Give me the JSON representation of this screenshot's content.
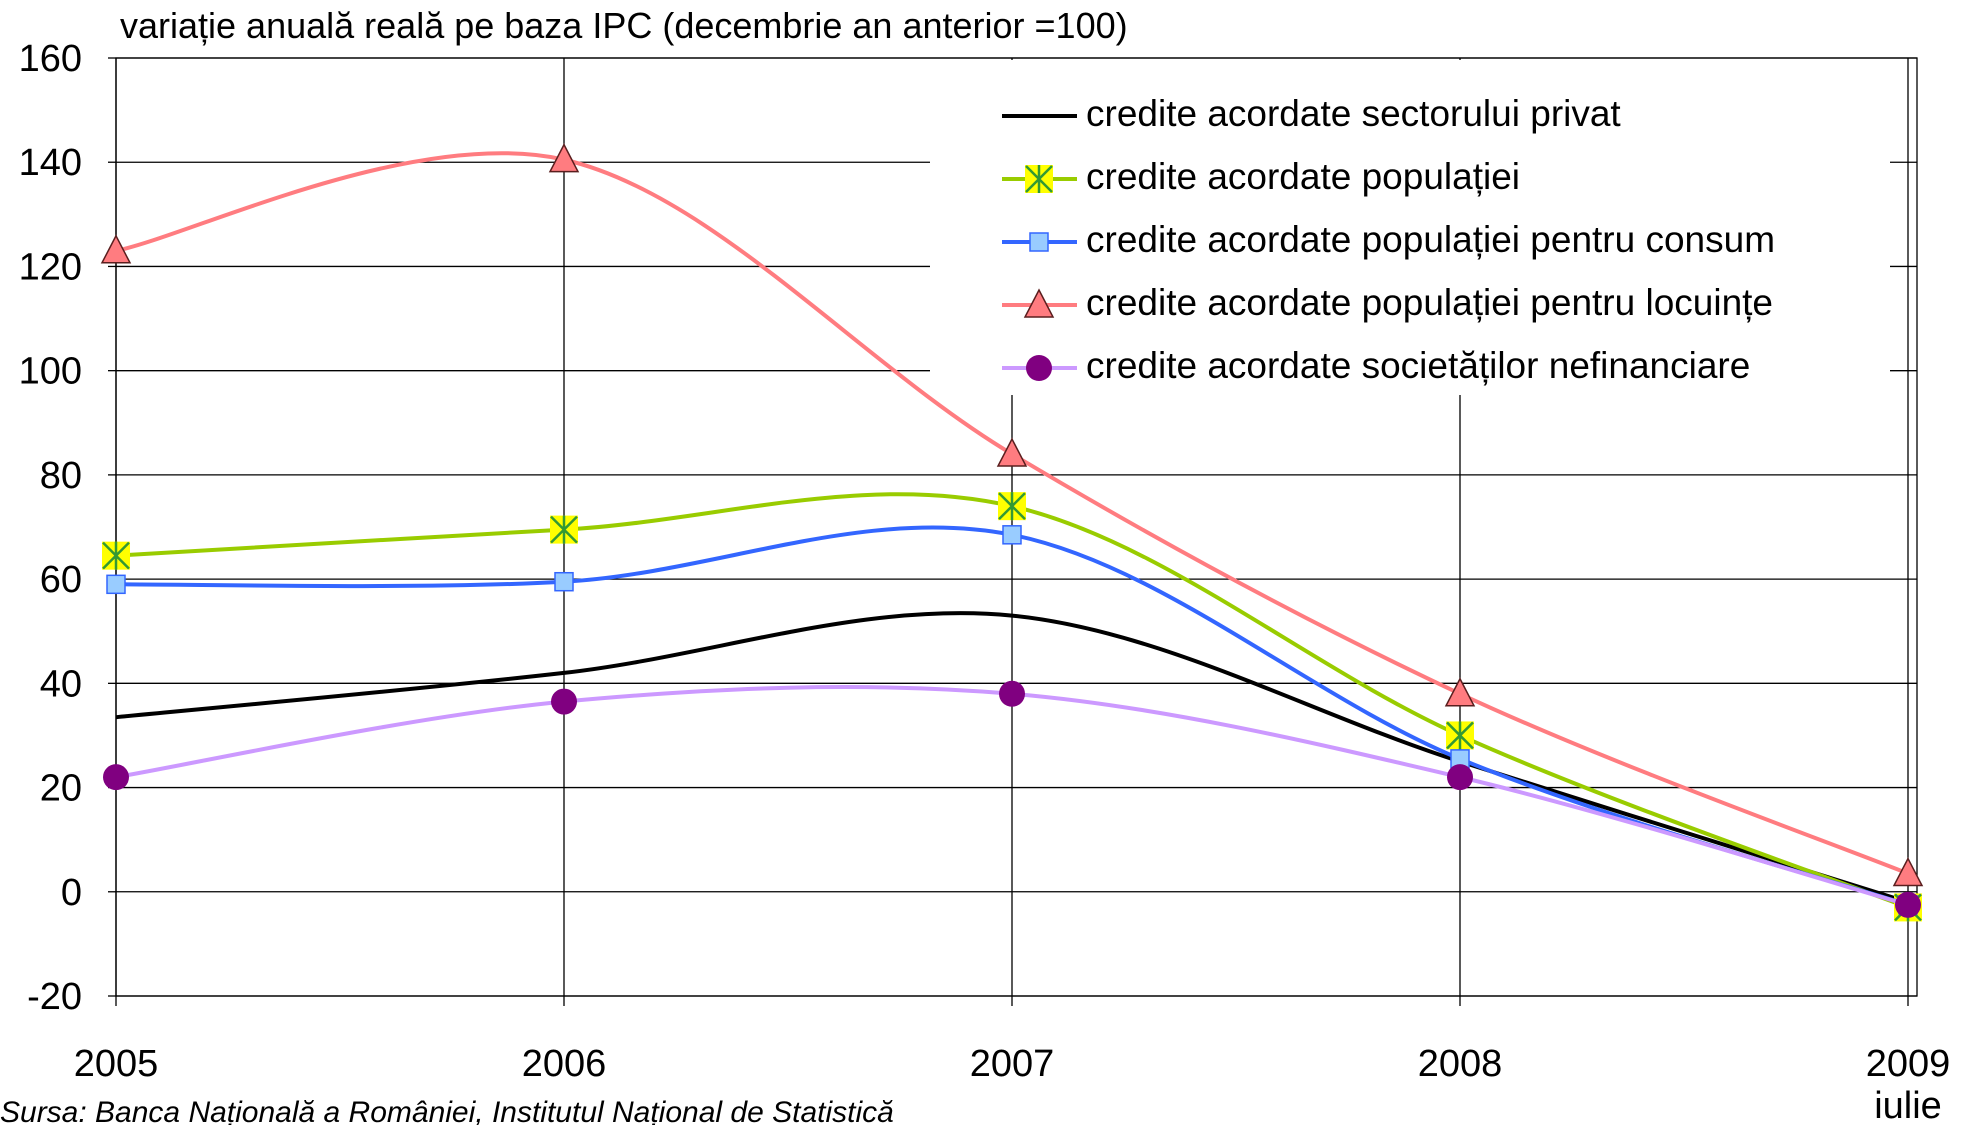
{
  "chart_data": {
    "type": "line",
    "title": "variație anuală reală pe baza IPC (decembrie an anterior =100)",
    "categories": [
      "2005",
      "2006",
      "2007",
      "2008",
      "2009"
    ],
    "x_annotation": "iulie",
    "source": "Sursa: Banca Națională a României, Institutul Național de Statistică",
    "ylim": [
      -20,
      160
    ],
    "yticks": [
      -20,
      0,
      20,
      40,
      60,
      80,
      100,
      120,
      140,
      160
    ],
    "grid": true,
    "legend": "upper right",
    "series": [
      {
        "name": "credite acordate sectorului privat",
        "color": "#000000",
        "marker": "none",
        "values": [
          33.5,
          42,
          53,
          25,
          -2
        ]
      },
      {
        "name": "credite acordate populației",
        "color": "#99cc00",
        "marker": "x-square",
        "values": [
          64.5,
          69.5,
          74,
          30,
          -3
        ]
      },
      {
        "name": "credite acordate populației pentru consum",
        "color": "#3366ff",
        "marker": "square",
        "values": [
          59,
          59.5,
          68.5,
          25.5,
          -2.5
        ]
      },
      {
        "name": "credite acordate populației pentru locuințe",
        "color": "#ff7c80",
        "marker": "triangle",
        "values": [
          123,
          140.5,
          84,
          38,
          3.5
        ]
      },
      {
        "name": "credite acordate societăților nefinanciare",
        "color": "#cc99ff",
        "marker": "circle",
        "values": [
          22,
          36.5,
          38,
          22,
          -2.5
        ]
      }
    ]
  }
}
